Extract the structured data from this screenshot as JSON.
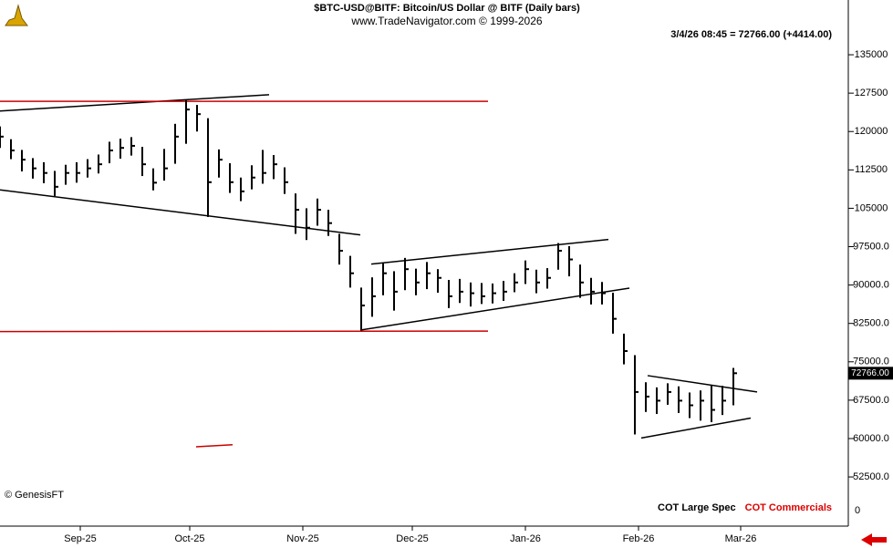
{
  "chart_data": {
    "type": "ohlc",
    "title": "$BTC-USD@BITF:  Bitcoin/US Dollar @ BITF  (Daily bars)",
    "subtitle": "www.TradeNavigator.com © 1999-2026",
    "info": "3/4/26 08:45 = 72766.00 (+4414.00)",
    "copyright": "© GenesisFT",
    "color": "#000000",
    "x": [
      0,
      3,
      6,
      9,
      12,
      15,
      18,
      21,
      24,
      27,
      30,
      33,
      36,
      39,
      42,
      45,
      48,
      51,
      54,
      57,
      60,
      63,
      66,
      69,
      72,
      75,
      78,
      81,
      84,
      87,
      90,
      93,
      96,
      99,
      102,
      105,
      108,
      111,
      114,
      117,
      120,
      123,
      126,
      129,
      132,
      135,
      138,
      141,
      144,
      147,
      150,
      153,
      156,
      159,
      162,
      165,
      168,
      171,
      174,
      177,
      180,
      183,
      186,
      189,
      192,
      195,
      198,
      201
    ],
    "high": [
      121000,
      118500,
      116400,
      114800,
      114000,
      112300,
      113500,
      114000,
      114600,
      115500,
      118000,
      118600,
      118900,
      117000,
      112800,
      116600,
      121500,
      126100,
      125200,
      122600,
      116500,
      113800,
      111000,
      113400,
      116400,
      115400,
      113000,
      107900,
      105000,
      106900,
      104700,
      100000,
      95700,
      89500,
      91500,
      94200,
      92700,
      95300,
      93200,
      94500,
      93100,
      91000,
      91200,
      90500,
      90400,
      90300,
      90800,
      92300,
      94800,
      93000,
      93300,
      98200,
      97600,
      94000,
      91400,
      90600,
      88500,
      80500,
      76300,
      71000,
      70000,
      70800,
      70200,
      69000,
      69400,
      70500,
      70300,
      73800
    ],
    "low": [
      116800,
      114600,
      112200,
      110800,
      109900,
      107400,
      109600,
      110000,
      111000,
      111800,
      113800,
      114700,
      115300,
      111300,
      108500,
      110400,
      113700,
      117600,
      120000,
      103300,
      111000,
      108000,
      106400,
      108700,
      109800,
      110700,
      107800,
      100000,
      98800,
      101600,
      99600,
      94000,
      89500,
      81200,
      83800,
      88000,
      85000,
      89000,
      88000,
      89200,
      88500,
      85500,
      86500,
      85800,
      86300,
      86400,
      86900,
      88600,
      90200,
      88400,
      89300,
      93000,
      91700,
      87500,
      86200,
      86200,
      80500,
      74500,
      60800,
      65200,
      64800,
      66600,
      65000,
      64000,
      63500,
      63200,
      64600,
      66500
    ],
    "close": [
      119000,
      116300,
      114500,
      112800,
      111900,
      109200,
      111900,
      111900,
      112800,
      113600,
      116300,
      116800,
      117200,
      113600,
      110000,
      112800,
      119000,
      124300,
      123400,
      110100,
      114500,
      110100,
      108300,
      111000,
      111900,
      113600,
      110100,
      104700,
      101200,
      104700,
      102100,
      96700,
      92300,
      86000,
      87800,
      92300,
      88700,
      93100,
      90500,
      92300,
      91400,
      87800,
      88700,
      88400,
      87800,
      88400,
      88700,
      90500,
      93100,
      90500,
      91400,
      96700,
      95000,
      90500,
      88700,
      88400,
      83400,
      77100,
      69100,
      68200,
      67400,
      69100,
      67400,
      66500,
      67400,
      65600,
      67400,
      72766
    ],
    "last_price": {
      "value": 72766,
      "label": "72766.00"
    },
    "xlim": [
      0,
      232
    ],
    "xticks": [
      {
        "value": 22,
        "label": "Sep-25"
      },
      {
        "value": 52,
        "label": "Oct-25"
      },
      {
        "value": 83,
        "label": "Nov-25"
      },
      {
        "value": 113,
        "label": "Dec-25"
      },
      {
        "value": 144,
        "label": "Jan-26"
      },
      {
        "value": 175,
        "label": "Feb-26"
      },
      {
        "value": 203,
        "label": "Mar-26"
      }
    ],
    "ylim": [
      47700,
      145700
    ],
    "yticks": [
      135000,
      127500,
      120000,
      112500,
      105000,
      {
        "value": 97500,
        "label": "97500.0"
      },
      {
        "value": 90000,
        "label": "90000.0"
      },
      {
        "value": 82500,
        "label": "82500.0"
      },
      {
        "value": 75000,
        "label": "75000.0"
      },
      {
        "value": 67500,
        "label": "67500.0"
      },
      {
        "value": 60000,
        "label": "60000.0"
      },
      {
        "value": 52500,
        "label": "52500.0"
      }
    ],
    "trendlines": [
      {
        "color": "#000000",
        "points": [
          [
            0,
            124000
          ],
          [
            73.75,
            127200
          ]
        ]
      },
      {
        "color": "#cc0000",
        "points": [
          [
            0,
            125900
          ],
          [
            133.75,
            125900
          ]
        ]
      },
      {
        "color": "#000000",
        "points": [
          [
            0,
            108600
          ],
          [
            98.75,
            99800
          ]
        ]
      },
      {
        "color": "#cc0000",
        "points": [
          [
            0,
            80900
          ],
          [
            133.75,
            81000
          ]
        ]
      },
      {
        "color": "#000000",
        "points": [
          [
            98.75,
            81200
          ],
          [
            172.5,
            89400
          ]
        ]
      },
      {
        "color": "#000000",
        "points": [
          [
            101.75,
            94100
          ],
          [
            166.75,
            98900
          ]
        ]
      },
      {
        "color": "#000000",
        "points": [
          [
            177.5,
            72300
          ],
          [
            207.5,
            69100
          ]
        ]
      },
      {
        "color": "#000000",
        "points": [
          [
            175.75,
            60100
          ],
          [
            205.75,
            64000
          ]
        ]
      },
      {
        "color": "#cc0000",
        "points": [
          [
            53.75,
            58400
          ],
          [
            63.75,
            58800
          ]
        ]
      }
    ],
    "cot_legend": [
      {
        "name": "COT Large Spec",
        "color": "#000000"
      },
      {
        "name": "COT Commercials",
        "color": "#dd0000"
      }
    ],
    "cot_axis_label": "0"
  }
}
